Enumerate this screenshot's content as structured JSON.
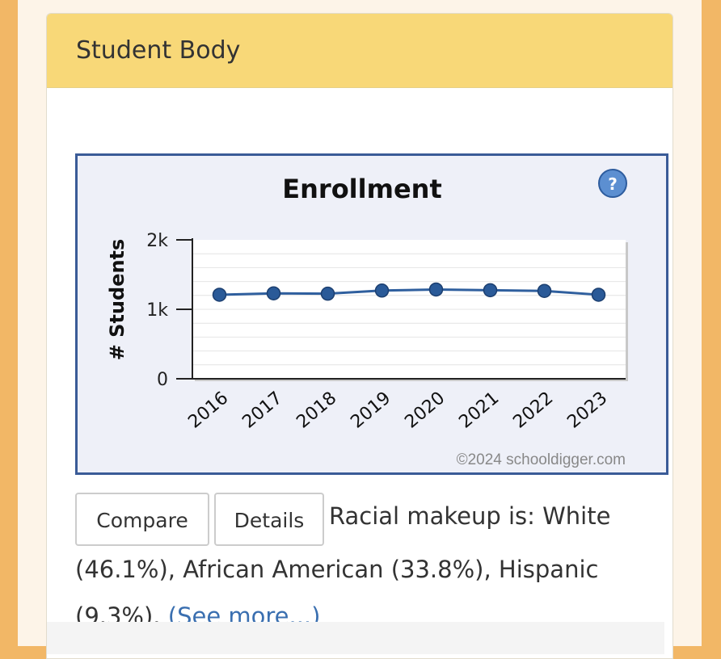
{
  "panel": {
    "title": "Student Body"
  },
  "help_icon": "question-icon",
  "colors": {
    "line": "#2f5f9e",
    "point": "#2a5a98",
    "frame": "#3a5b97",
    "header": "#f8d878"
  },
  "chart_data": {
    "type": "line",
    "title": "Enrollment",
    "ylabel": "# Students",
    "xlabel": "",
    "categories": [
      "2016",
      "2017",
      "2018",
      "2019",
      "2020",
      "2021",
      "2022",
      "2023"
    ],
    "values": [
      1210,
      1230,
      1225,
      1270,
      1285,
      1275,
      1265,
      1210
    ],
    "ylim": [
      0,
      2000
    ],
    "yticks": [
      0,
      1000,
      2000
    ],
    "ytick_labels": [
      "0",
      "1k",
      "2k"
    ],
    "grid": true,
    "watermark": "©2024 schooldigger.com"
  },
  "buttons": {
    "compare": "Compare",
    "details": "Details"
  },
  "summary": {
    "text": "Racial makeup is: White (46.1%), African American (33.8%), Hispanic (9.3%).",
    "link": "(See more...)"
  }
}
